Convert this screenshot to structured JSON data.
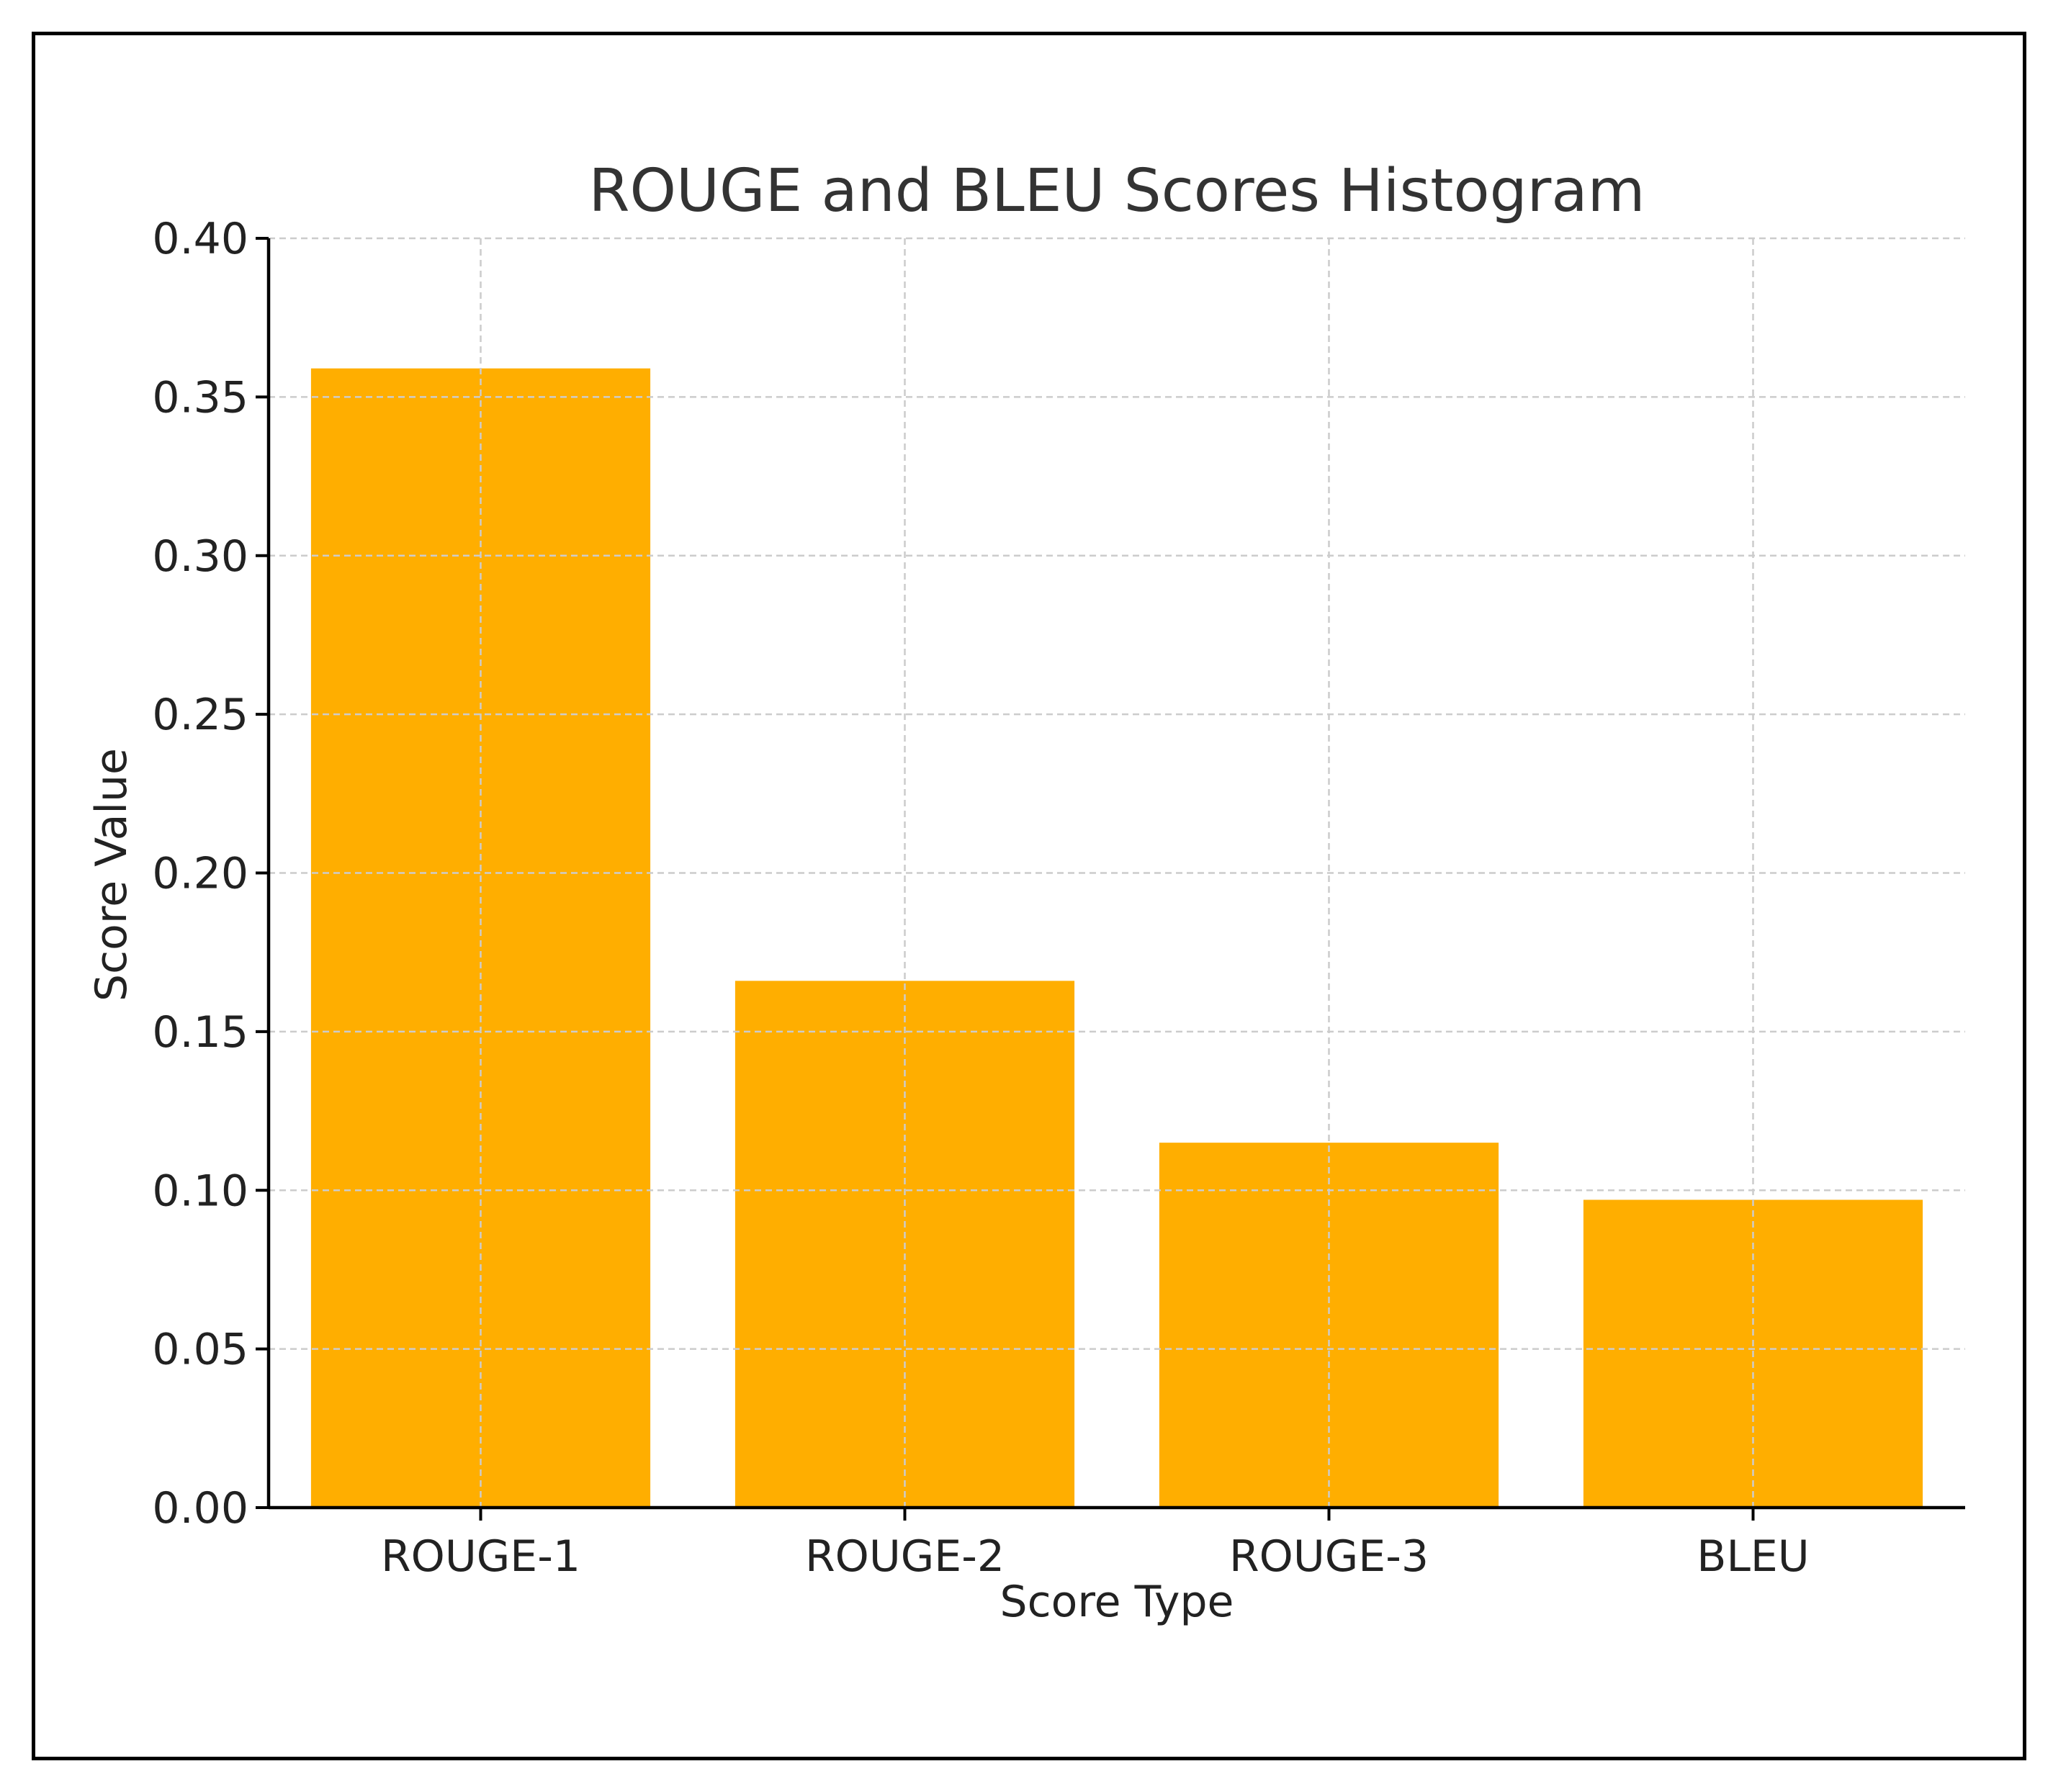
{
  "chart_data": {
    "type": "bar",
    "title": "ROUGE and BLEU Scores Histogram",
    "xlabel": "Score Type",
    "ylabel": "Score Value",
    "categories": [
      "ROUGE-1",
      "ROUGE-2",
      "ROUGE-3",
      "BLEU"
    ],
    "values": [
      0.359,
      0.166,
      0.115,
      0.097
    ],
    "ylim": [
      0,
      0.4
    ],
    "yticks": [
      "0.00",
      "0.05",
      "0.10",
      "0.15",
      "0.20",
      "0.25",
      "0.30",
      "0.35",
      "0.40"
    ],
    "grid": true,
    "legend": "none",
    "colors": {
      "bar": "#FFAE00",
      "grid": "#cccccc",
      "axis": "#000000",
      "text": "#222222",
      "title": "#333333"
    }
  }
}
